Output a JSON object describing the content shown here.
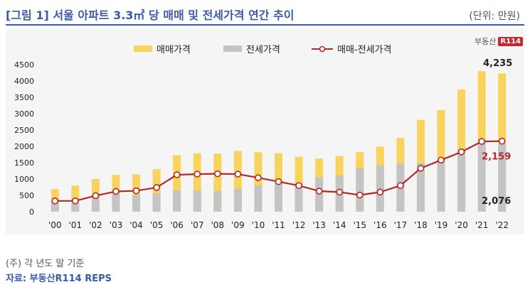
{
  "header": {
    "title": "[그림 1] 서울 아파트 3.3㎡ 당 매매 및 전세가격 연간 추이",
    "unit": "(단위: 만원)"
  },
  "logo": {
    "text": "부동산",
    "mark": "R114"
  },
  "footer": {
    "note": "(주) 각 년도 말 기준",
    "source": "자료: 부동산R114 REPS"
  },
  "colors": {
    "sale": "#f8d35e",
    "jeonse": "#c4c4c4",
    "line": "#b02a2a",
    "title": "#3b5aa8"
  },
  "chart_data": {
    "type": "bar",
    "stacked_overlay": true,
    "categories": [
      "'00",
      "'01",
      "'02",
      "'03",
      "'04",
      "'05",
      "'06",
      "'07",
      "'08",
      "'09",
      "'10",
      "'11",
      "'12",
      "'13",
      "'14",
      "'15",
      "'16",
      "'17",
      "'18",
      "'19",
      "'20",
      "'21",
      "'22"
    ],
    "series": [
      {
        "name": "매매가격",
        "type": "bar",
        "values": [
          690,
          800,
          1000,
          1130,
          1140,
          1300,
          1730,
          1790,
          1780,
          1860,
          1820,
          1790,
          1680,
          1630,
          1700,
          1820,
          1990,
          2260,
          2810,
          3110,
          3740,
          4300,
          4235
        ]
      },
      {
        "name": "전세가격",
        "type": "bar",
        "values": [
          360,
          400,
          510,
          560,
          520,
          560,
          650,
          650,
          630,
          700,
          800,
          880,
          880,
          1050,
          1110,
          1330,
          1420,
          1470,
          1490,
          1540,
          1900,
          2150,
          2076
        ]
      },
      {
        "name": "매매-전세가격",
        "type": "line",
        "values": [
          330,
          330,
          490,
          620,
          640,
          740,
          1130,
          1150,
          1160,
          1150,
          1040,
          920,
          800,
          630,
          600,
          510,
          600,
          800,
          1330,
          1580,
          1830,
          2150,
          2159
        ]
      }
    ],
    "data_labels": {
      "sale_last": "4,235",
      "gap_last": "2,159",
      "jeonse_last": "2,076"
    },
    "yticks": [
      "4500",
      "4000",
      "3500",
      "3000",
      "2500",
      "2000",
      "1500",
      "1000",
      "500",
      "0"
    ],
    "ylim": [
      0,
      4500
    ],
    "legend": "top"
  }
}
